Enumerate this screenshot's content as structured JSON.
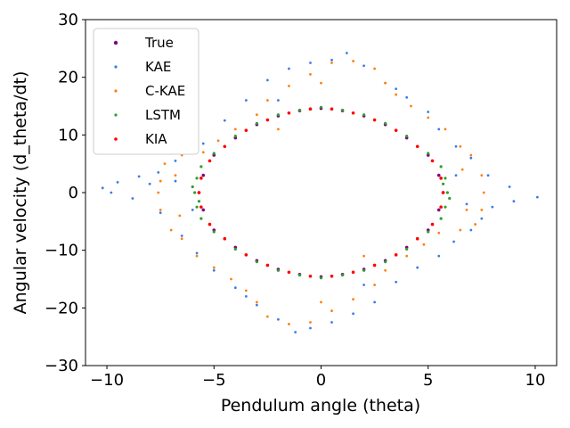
{
  "chart_data": {
    "type": "scatter",
    "title": "",
    "xlabel": "Pendulum angle (theta)",
    "ylabel": "Angular velocity (d_theta/dt)",
    "xlim": [
      -11,
      11
    ],
    "ylim": [
      -30,
      30
    ],
    "xticks": [
      -10,
      -5,
      0,
      5,
      10
    ],
    "xtick_labels": [
      "−10",
      "−5",
      "0",
      "5",
      "10"
    ],
    "yticks": [
      -30,
      -20,
      -10,
      0,
      10,
      20,
      30
    ],
    "ytick_labels": [
      "−30",
      "−20",
      "−10",
      "0",
      "10",
      "20",
      "30"
    ],
    "grid": false,
    "legend_position": "top-left",
    "series": [
      {
        "name": "True",
        "color": "#800080",
        "marker": "purple dot",
        "points": [
          [
            -5.7,
            0
          ],
          [
            -5.5,
            3
          ],
          [
            -5.0,
            6.5
          ],
          [
            -4.0,
            9.5
          ],
          [
            -3.0,
            11.8
          ],
          [
            -2.0,
            13.3
          ],
          [
            -1.0,
            14.2
          ],
          [
            0,
            14.6
          ],
          [
            1.0,
            14.2
          ],
          [
            2.0,
            13.3
          ],
          [
            3.0,
            11.8
          ],
          [
            4.0,
            9.5
          ],
          [
            5.0,
            6.5
          ],
          [
            5.5,
            3
          ],
          [
            5.7,
            0
          ],
          [
            5.5,
            -3
          ],
          [
            5.0,
            -6.5
          ],
          [
            4.0,
            -9.5
          ],
          [
            3.0,
            -11.8
          ],
          [
            2.0,
            -13.3
          ],
          [
            1.0,
            -14.2
          ],
          [
            0,
            -14.6
          ],
          [
            -1.0,
            -14.2
          ],
          [
            -2.0,
            -13.3
          ],
          [
            -3.0,
            -11.8
          ],
          [
            -4.0,
            -9.5
          ],
          [
            -5.0,
            -6.5
          ],
          [
            -5.5,
            -3
          ]
        ]
      },
      {
        "name": "KAE",
        "color": "#3a7ce8",
        "marker": "blue dot",
        "points": [
          [
            -10.2,
            0.8
          ],
          [
            -9.5,
            1.8
          ],
          [
            -8.5,
            2.8
          ],
          [
            -7.6,
            3.5
          ],
          [
            -6.8,
            5.5
          ],
          [
            -5.5,
            8.5
          ],
          [
            -4.5,
            12.5
          ],
          [
            -3.5,
            16
          ],
          [
            -2.5,
            19.5
          ],
          [
            -1.5,
            21.5
          ],
          [
            -0.5,
            22.5
          ],
          [
            0.5,
            23
          ],
          [
            1.2,
            24.2
          ],
          [
            2.0,
            22
          ],
          [
            3.0,
            19
          ],
          [
            4.0,
            16.5
          ],
          [
            5.0,
            14
          ],
          [
            5.5,
            11
          ],
          [
            6.3,
            8
          ],
          [
            7.0,
            6
          ],
          [
            7.8,
            3
          ],
          [
            8.8,
            1
          ],
          [
            10.1,
            -0.8
          ],
          [
            9.0,
            -1.5
          ],
          [
            8.0,
            -2.5
          ],
          [
            7.5,
            -4.5
          ],
          [
            7.0,
            -6.5
          ],
          [
            6.2,
            -8.5
          ],
          [
            5.5,
            -11
          ],
          [
            4.5,
            -13
          ],
          [
            3.5,
            -15.5
          ],
          [
            2.5,
            -19
          ],
          [
            1.5,
            -21
          ],
          [
            0.5,
            -22.5
          ],
          [
            -0.5,
            -23.5
          ],
          [
            -1.2,
            -24.2
          ],
          [
            -2.0,
            -22
          ],
          [
            -3.0,
            -19.5
          ],
          [
            -4.0,
            -16.5
          ],
          [
            -5.0,
            -13.5
          ],
          [
            -5.8,
            -10.5
          ],
          [
            -6.5,
            -7.5
          ],
          [
            -7.5,
            -3.5
          ],
          [
            -8.8,
            -1
          ],
          [
            -9.8,
            0
          ],
          [
            -8.0,
            1.5
          ],
          [
            -6.8,
            2
          ],
          [
            -6.0,
            -3
          ],
          [
            6.3,
            3
          ],
          [
            6.8,
            -2
          ],
          [
            -3.5,
            -18
          ],
          [
            3.5,
            18
          ],
          [
            -2.0,
            16
          ],
          [
            2.0,
            -16
          ]
        ]
      },
      {
        "name": "C-KAE",
        "color": "#ff7f0e",
        "marker": "orange dot",
        "points": [
          [
            -7.5,
            2
          ],
          [
            -7.3,
            5
          ],
          [
            -6.5,
            6.5
          ],
          [
            -5.5,
            7
          ],
          [
            -4.8,
            9
          ],
          [
            -4.0,
            11
          ],
          [
            -3.0,
            13.5
          ],
          [
            -2.5,
            16
          ],
          [
            -1.5,
            18.5
          ],
          [
            -0.5,
            20.5
          ],
          [
            0.5,
            22.5
          ],
          [
            1.5,
            22.8
          ],
          [
            2.5,
            21.5
          ],
          [
            3.0,
            19
          ],
          [
            3.5,
            17
          ],
          [
            4.2,
            15
          ],
          [
            5.0,
            13
          ],
          [
            5.8,
            11
          ],
          [
            6.5,
            8
          ],
          [
            7.0,
            6.5
          ],
          [
            7.5,
            3
          ],
          [
            7.6,
            0
          ],
          [
            7.5,
            -3
          ],
          [
            7.2,
            -5.5
          ],
          [
            6.5,
            -6.5
          ],
          [
            5.5,
            -7
          ],
          [
            4.8,
            -9
          ],
          [
            4.0,
            -11
          ],
          [
            3.0,
            -13.5
          ],
          [
            2.5,
            -16
          ],
          [
            1.5,
            -18.5
          ],
          [
            0.5,
            -20.5
          ],
          [
            -0.5,
            -22.5
          ],
          [
            -1.5,
            -22.8
          ],
          [
            -2.5,
            -21.5
          ],
          [
            -3.0,
            -19
          ],
          [
            -3.5,
            -17
          ],
          [
            -4.2,
            -15
          ],
          [
            -5.0,
            -13
          ],
          [
            -5.8,
            -11
          ],
          [
            -6.5,
            -8
          ],
          [
            -7.0,
            -6.5
          ],
          [
            -7.5,
            -3
          ],
          [
            -7.6,
            0
          ],
          [
            -6.8,
            3
          ],
          [
            -6.6,
            -4
          ],
          [
            6.6,
            4
          ],
          [
            6.8,
            -3
          ],
          [
            -2.0,
            11
          ],
          [
            2.0,
            -11
          ],
          [
            0,
            19
          ],
          [
            0,
            -19
          ]
        ]
      },
      {
        "name": "LSTM",
        "color": "#2ca02c",
        "marker": "green dot",
        "points": [
          [
            -5.9,
            0
          ],
          [
            -5.8,
            2.5
          ],
          [
            -5.6,
            4.5
          ],
          [
            -5.0,
            6.8
          ],
          [
            -4.0,
            9.8
          ],
          [
            -3.0,
            12
          ],
          [
            -2.0,
            13.5
          ],
          [
            -1.0,
            14.3
          ],
          [
            0,
            14.8
          ],
          [
            1.0,
            14.3
          ],
          [
            2.0,
            13.5
          ],
          [
            3.0,
            12
          ],
          [
            4.0,
            9.8
          ],
          [
            5.0,
            6.8
          ],
          [
            5.6,
            4.5
          ],
          [
            5.8,
            2.5
          ],
          [
            5.9,
            0
          ],
          [
            5.8,
            -2.5
          ],
          [
            5.6,
            -4.5
          ],
          [
            5.0,
            -6.8
          ],
          [
            4.0,
            -9.8
          ],
          [
            3.0,
            -12
          ],
          [
            2.0,
            -13.5
          ],
          [
            1.0,
            -14.3
          ],
          [
            0,
            -14.8
          ],
          [
            -1.0,
            -14.3
          ],
          [
            -2.0,
            -13.5
          ],
          [
            -3.0,
            -12
          ],
          [
            -4.0,
            -9.8
          ],
          [
            -5.0,
            -6.8
          ],
          [
            -5.6,
            -4.5
          ],
          [
            -5.8,
            -2.5
          ],
          [
            -6.0,
            1
          ],
          [
            6.0,
            -1
          ],
          [
            -5.7,
            -1.5
          ],
          [
            5.7,
            1.5
          ]
        ]
      },
      {
        "name": "KIA",
        "color": "#ff0000",
        "marker": "red dot",
        "points": [
          [
            -5.7,
            0
          ],
          [
            -5.6,
            2.5
          ],
          [
            -5.2,
            5.5
          ],
          [
            -4.5,
            8
          ],
          [
            -3.5,
            10.8
          ],
          [
            -2.5,
            12.6
          ],
          [
            -1.5,
            13.8
          ],
          [
            -0.5,
            14.5
          ],
          [
            0.5,
            14.5
          ],
          [
            1.5,
            13.8
          ],
          [
            2.5,
            12.6
          ],
          [
            3.5,
            10.8
          ],
          [
            4.5,
            8
          ],
          [
            5.2,
            5.5
          ],
          [
            5.6,
            2.5
          ],
          [
            5.7,
            0
          ],
          [
            5.6,
            -2.5
          ],
          [
            5.2,
            -5.5
          ],
          [
            4.5,
            -8
          ],
          [
            3.5,
            -10.8
          ],
          [
            2.5,
            -12.6
          ],
          [
            1.5,
            -13.8
          ],
          [
            0.5,
            -14.5
          ],
          [
            -0.5,
            -14.5
          ],
          [
            -1.5,
            -13.8
          ],
          [
            -2.5,
            -12.6
          ],
          [
            -3.5,
            -10.8
          ],
          [
            -4.5,
            -8
          ],
          [
            -5.2,
            -5.5
          ],
          [
            -5.6,
            -2.5
          ]
        ]
      }
    ]
  }
}
